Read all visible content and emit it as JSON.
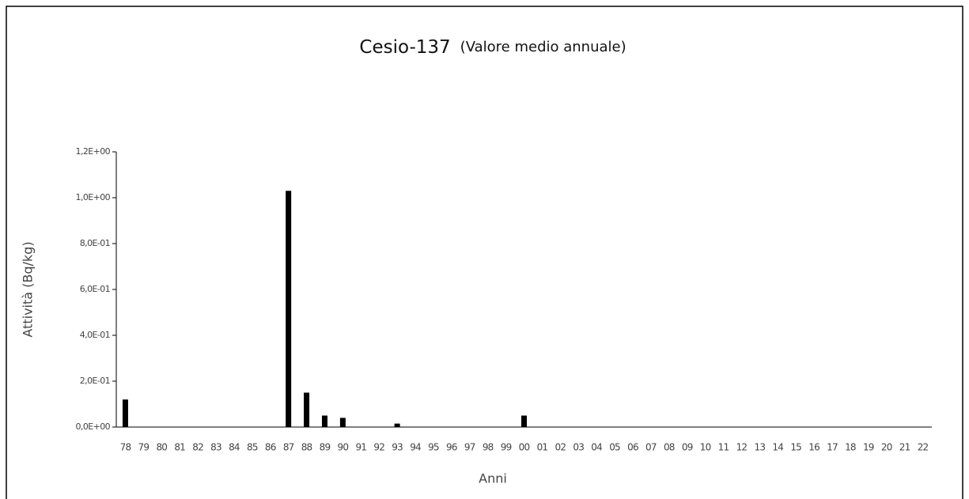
{
  "chart_data": {
    "type": "bar",
    "title": "Cesio-137",
    "subtitle": "(Valore medio annuale)",
    "x_label": "Anni",
    "y_label": "Attività (Bq/kg)",
    "categories": [
      "78",
      "79",
      "80",
      "81",
      "82",
      "83",
      "84",
      "85",
      "86",
      "87",
      "88",
      "89",
      "90",
      "91",
      "92",
      "93",
      "94",
      "95",
      "96",
      "97",
      "98",
      "99",
      "00",
      "01",
      "02",
      "03",
      "04",
      "05",
      "06",
      "07",
      "08",
      "09",
      "10",
      "11",
      "12",
      "13",
      "14",
      "15",
      "16",
      "17",
      "18",
      "19",
      "20",
      "21",
      "22"
    ],
    "values": [
      0.12,
      0,
      0,
      0,
      0,
      0,
      0,
      0,
      0,
      1.03,
      0.15,
      0.05,
      0.04,
      0,
      0,
      0.015,
      0,
      0,
      0,
      0,
      0,
      0,
      0.05,
      0,
      0,
      0,
      0,
      0,
      0,
      0,
      0,
      0,
      0,
      0,
      0,
      0,
      0,
      0,
      0,
      0,
      0,
      0,
      0,
      0,
      0
    ],
    "color": "#000000",
    "ylim": [
      0,
      1.2
    ],
    "yticks": [
      {
        "value": 0,
        "label": "0,0E+00"
      },
      {
        "value": 0.2,
        "label": "2,0E-01"
      },
      {
        "value": 0.4,
        "label": "4,0E-01"
      },
      {
        "value": 0.6,
        "label": "6,0E-01"
      },
      {
        "value": 0.8,
        "label": "8,0E-01"
      },
      {
        "value": 1.0,
        "label": "1,0E+00"
      },
      {
        "value": 1.2,
        "label": "1,2E+00"
      }
    ],
    "grid": false
  }
}
